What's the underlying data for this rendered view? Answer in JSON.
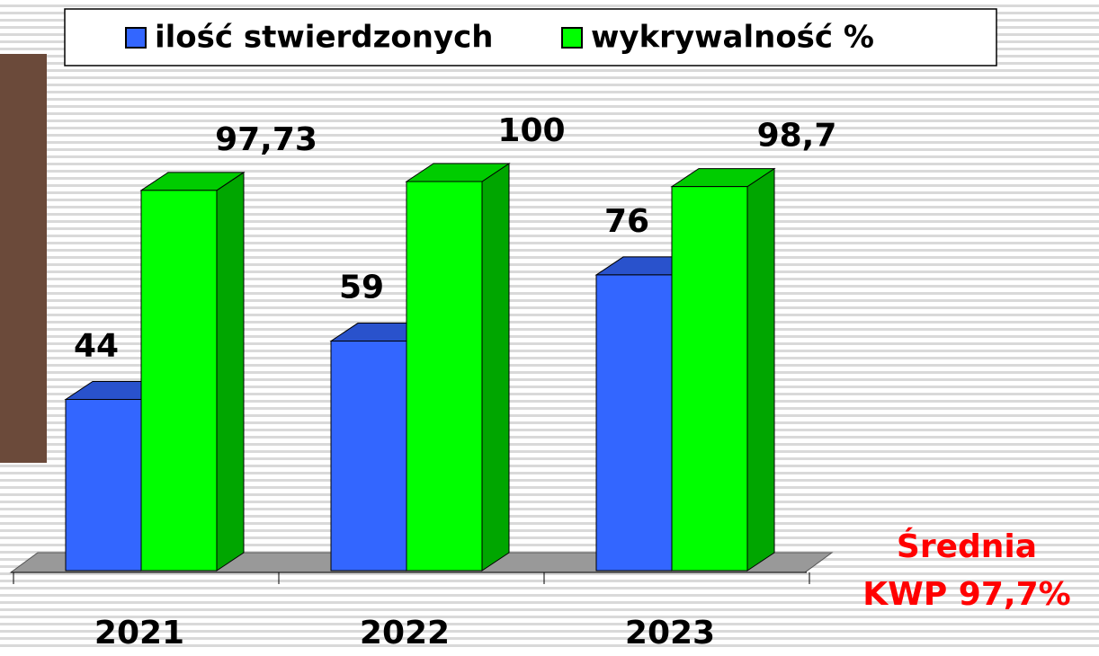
{
  "chart_data": {
    "type": "bar3d",
    "categories": [
      "2021",
      "2022",
      "2023"
    ],
    "series": [
      {
        "name": "ilość stwierdzonych",
        "color": "#3366ff",
        "values": [
          44,
          59,
          76
        ]
      },
      {
        "name": "wykrywalność %",
        "color": "#00ff00",
        "values": [
          97.73,
          100,
          98.7
        ],
        "value_labels": [
          "97,73",
          "100",
          "98,7"
        ]
      }
    ],
    "ylim": [
      0,
      100
    ],
    "annotations": [
      "Średnia",
      "KWP 97,7%"
    ]
  }
}
